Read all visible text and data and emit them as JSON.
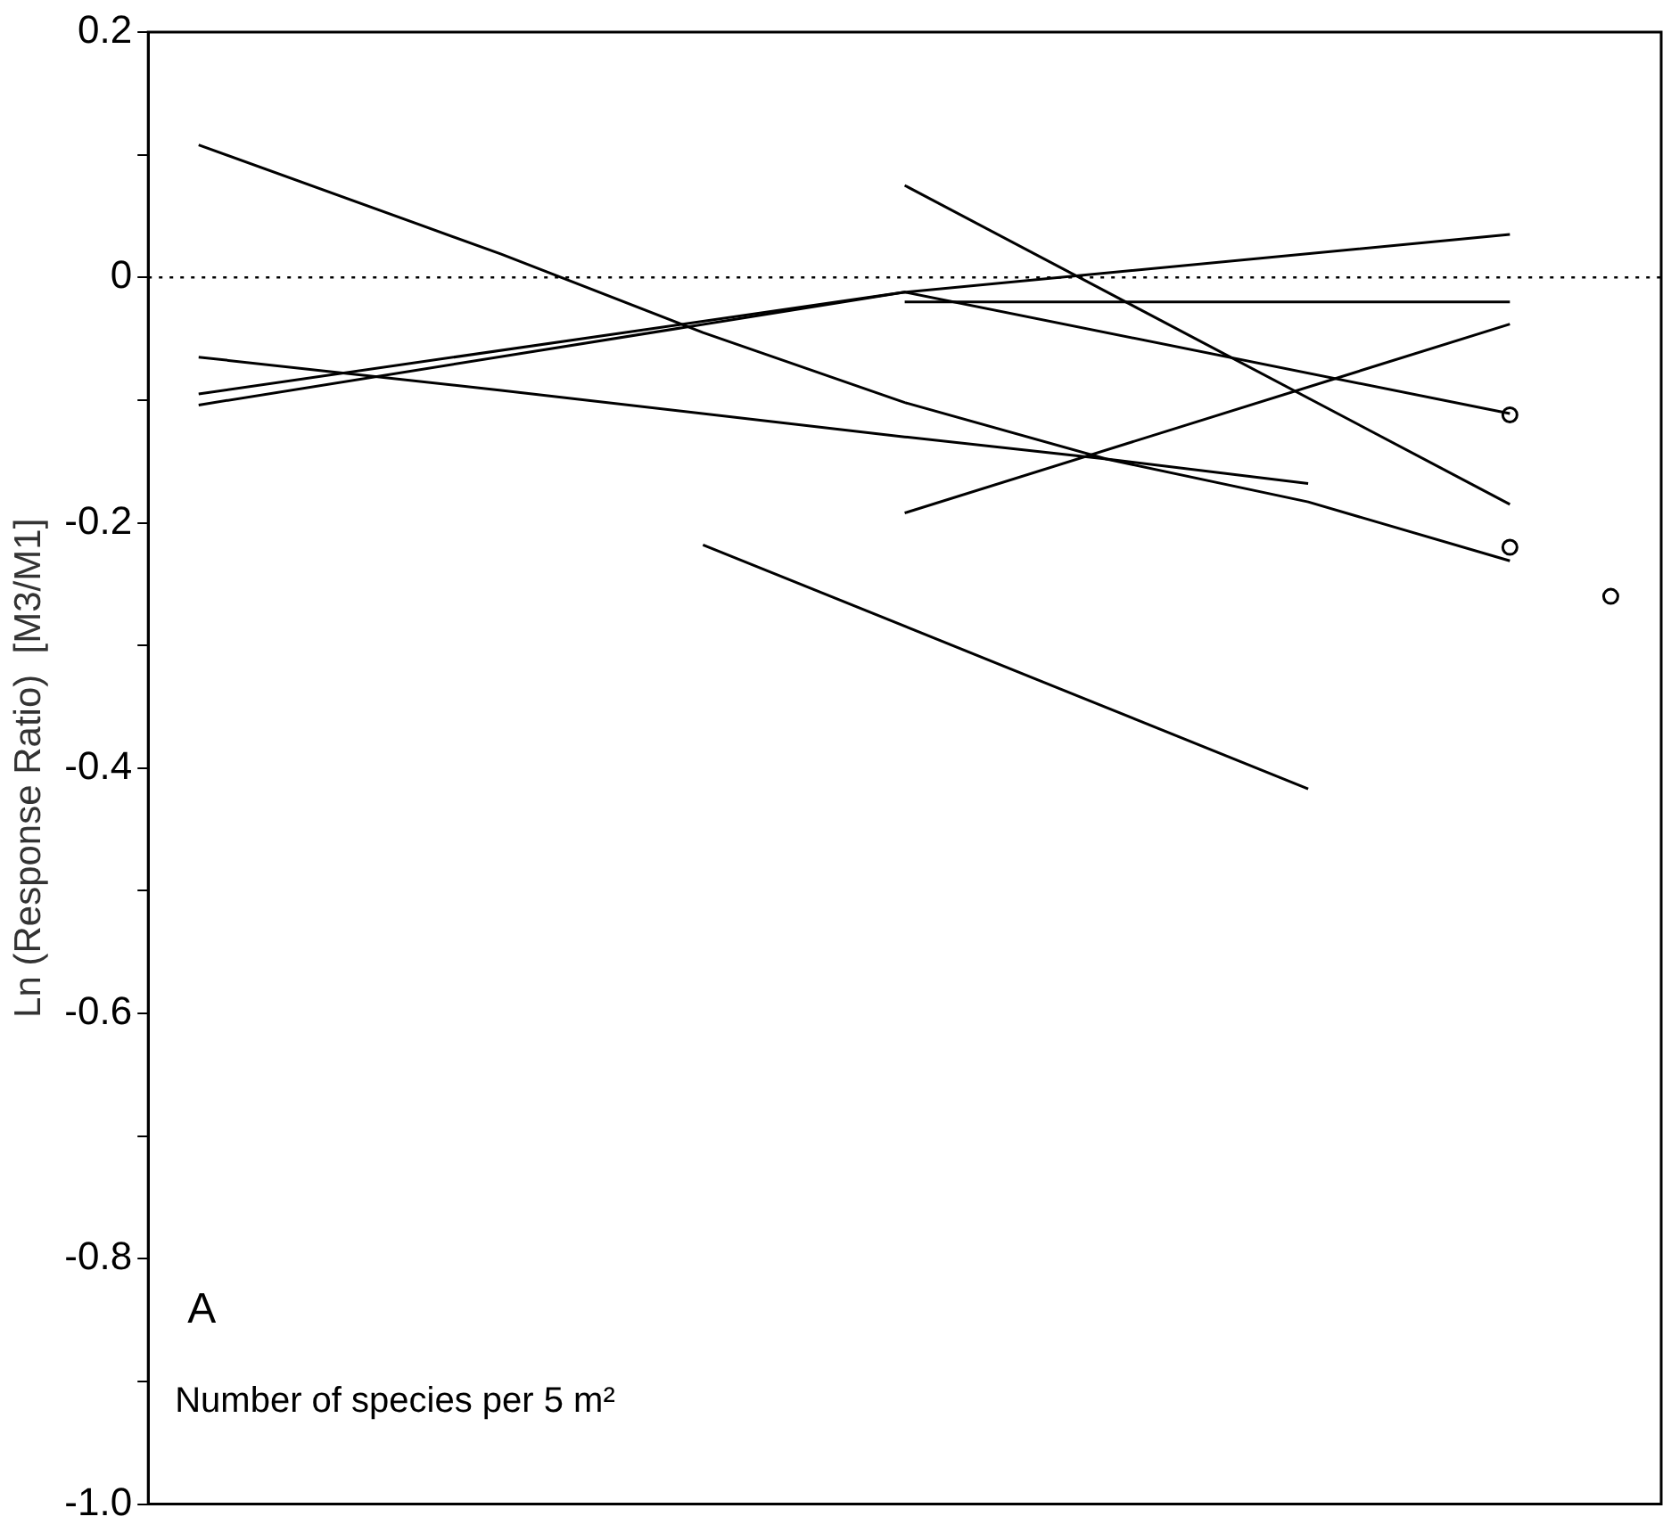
{
  "chart_data": {
    "type": "line",
    "ylabel": "Ln (Response Ratio)  [M3/M1]",
    "annotations": [
      "A",
      "Number of species per 5 m²"
    ],
    "categories": [
      null,
      null,
      null,
      null,
      null,
      null,
      null,
      null,
      null,
      null,
      null,
      null,
      null,
      null,
      null
    ],
    "ylim": [
      -1.0,
      0.2
    ],
    "yticks": [
      {
        "value": -1.0,
        "label": "-1.0"
      },
      {
        "value": -0.9,
        "label": null
      },
      {
        "value": -0.8,
        "label": "-0.8"
      },
      {
        "value": -0.7,
        "label": null
      },
      {
        "value": -0.6,
        "label": "-0.6"
      },
      {
        "value": -0.5,
        "label": null
      },
      {
        "value": -0.4,
        "label": "-0.4"
      },
      {
        "value": -0.3,
        "label": null
      },
      {
        "value": -0.2,
        "label": "-0.2"
      },
      {
        "value": -0.1,
        "label": null
      },
      0,
      {
        "value": 0.1,
        "label": null
      },
      0.2
    ],
    "grid": false,
    "legend": false,
    "tick_labels": "y",
    "marker": "none",
    "line_style": "solid",
    "ref_lines": [
      {
        "axis": "y",
        "value": 0,
        "line_style": "dotted",
        "color": "#000000"
      }
    ],
    "series": [
      {
        "color": "#000000",
        "values": [
          0.108,
          null,
          null,
          0.019,
          null,
          -0.045,
          null,
          -0.102,
          null,
          -0.148,
          null,
          -0.183,
          null,
          -0.231,
          null
        ]
      },
      {
        "color": "#000000",
        "values": [
          -0.065,
          null,
          null,
          -0.092,
          null,
          null,
          null,
          -0.13,
          null,
          -0.148,
          null,
          -0.168,
          null,
          null,
          null
        ]
      },
      {
        "color": "#000000",
        "values": [
          -0.095,
          null,
          null,
          null,
          null,
          null,
          null,
          -0.012,
          null,
          null,
          null,
          null,
          null,
          -0.111,
          null
        ]
      },
      {
        "color": "#000000",
        "values": [
          -0.104,
          null,
          null,
          null,
          null,
          null,
          null,
          -0.012,
          null,
          null,
          null,
          null,
          null,
          0.035,
          null
        ]
      },
      {
        "color": "#000000",
        "values": [
          null,
          null,
          null,
          null,
          null,
          null,
          null,
          -0.02,
          null,
          null,
          null,
          null,
          null,
          -0.02,
          null
        ]
      },
      {
        "color": "#000000",
        "values": [
          null,
          null,
          null,
          null,
          null,
          null,
          null,
          0.075,
          null,
          null,
          null,
          null,
          null,
          -0.185,
          null
        ]
      },
      {
        "color": "#000000",
        "values": [
          null,
          null,
          null,
          null,
          null,
          null,
          null,
          -0.192,
          null,
          null,
          null,
          null,
          null,
          -0.038,
          null
        ]
      },
      {
        "color": "#000000",
        "values": [
          null,
          null,
          null,
          null,
          null,
          -0.218,
          null,
          null,
          null,
          null,
          null,
          -0.417,
          null,
          null,
          null
        ]
      },
      {
        "type": "scatter",
        "marker": "circle",
        "color": "#000000",
        "values": [
          null,
          null,
          null,
          null,
          null,
          null,
          null,
          null,
          null,
          null,
          null,
          null,
          null,
          -0.112,
          -0.26
        ]
      },
      {
        "type": "scatter",
        "marker": "circle",
        "color": "#000000",
        "values": [
          null,
          null,
          null,
          null,
          null,
          null,
          null,
          null,
          null,
          null,
          null,
          null,
          null,
          -0.22,
          null
        ]
      }
    ]
  }
}
